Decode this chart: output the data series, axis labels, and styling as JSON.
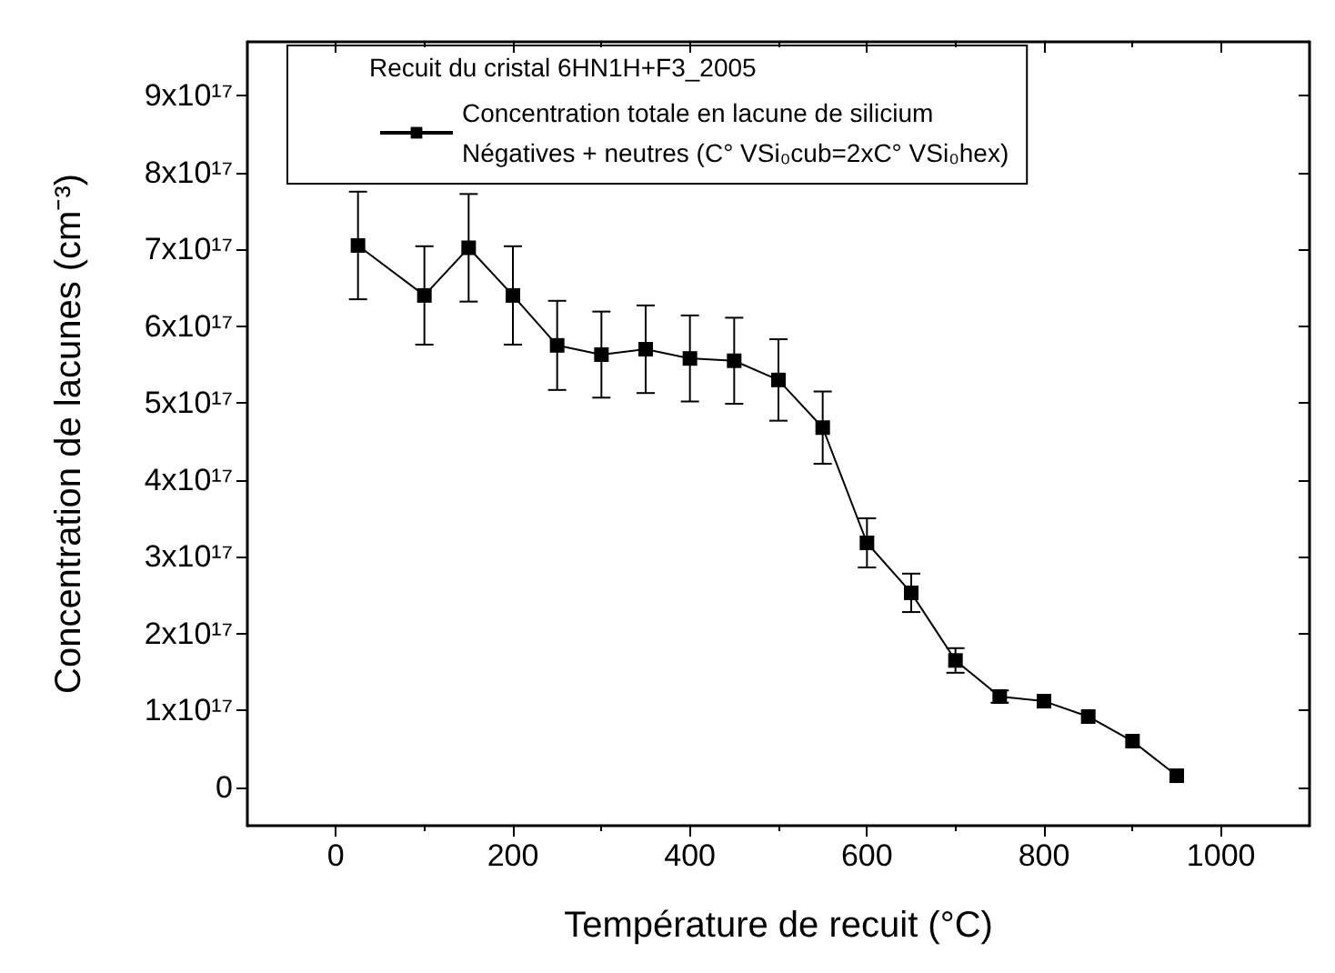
{
  "chart_data": {
    "type": "line",
    "xlabel": "Température de recuit (°C)",
    "ylabel": "Concentration de lacunes (cm⁻³)",
    "legend_title": "Recuit du cristal 6HN1H+F3_2005",
    "x": [
      25,
      100,
      150,
      200,
      250,
      300,
      350,
      400,
      450,
      500,
      550,
      600,
      650,
      700,
      750,
      800,
      850,
      900,
      950
    ],
    "series": [
      {
        "name": "Concentration totale en lacune de silicium\nNégatives + neutres (C° VSi₀cub=2xC° VSi₀hex)",
        "color": "#000000",
        "values": [
          7.05e+17,
          6.4e+17,
          7.02e+17,
          6.4e+17,
          5.75e+17,
          5.63e+17,
          5.7e+17,
          5.58e+17,
          5.55e+17,
          5.3e+17,
          4.68e+17,
          3.18e+17,
          2.53e+17,
          1.65e+17,
          1.18e+17,
          1.12e+17,
          9.2e+16,
          6e+16,
          1.5e+16
        ],
        "errors": [
          7e+16,
          6.4e+16,
          7e+16,
          6.4e+16,
          5.8e+16,
          5.6e+16,
          5.7e+16,
          5.6e+16,
          5.6e+16,
          5.3e+16,
          4.7e+16,
          3.2e+16,
          2.5e+16,
          1.6e+16,
          8000000000000000.0,
          null,
          null,
          null,
          null
        ]
      }
    ],
    "xlim": [
      -100,
      1100
    ],
    "xticks": [
      0,
      200,
      400,
      600,
      800,
      1000
    ],
    "ylim": [
      -5e+16,
      9.7e+17
    ],
    "yticks": [
      0,
      {
        "value": 1e+17,
        "label": "1x10¹⁷"
      },
      {
        "value": 2e+17,
        "label": "2x10¹⁷"
      },
      {
        "value": 3e+17,
        "label": "3x10¹⁷"
      },
      {
        "value": 4e+17,
        "label": "4x10¹⁷"
      },
      {
        "value": 5e+17,
        "label": "5x10¹⁷"
      },
      {
        "value": 6e+17,
        "label": "6x10¹⁷"
      },
      {
        "value": 7e+17,
        "label": "7x10¹⁷"
      },
      {
        "value": 8e+17,
        "label": "8x10¹⁷"
      },
      {
        "value": 9e+17,
        "label": "9x10¹⁷"
      }
    ],
    "grid": false,
    "legend": "top",
    "marker": "square",
    "line_style": "solid"
  }
}
